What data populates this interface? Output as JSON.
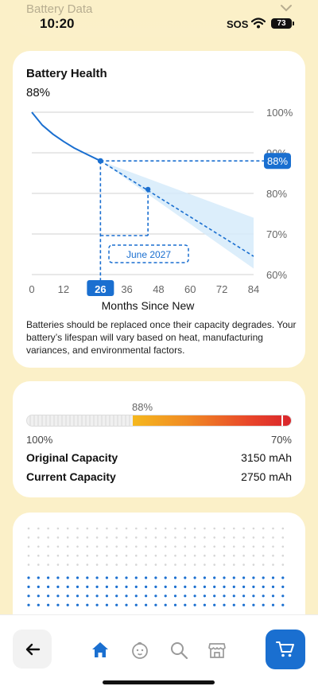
{
  "status_bar": {
    "nav_title": "Battery Data",
    "time": "10:20",
    "sos": "SOS",
    "battery_level": "73"
  },
  "health_card": {
    "title": "Battery Health",
    "value": "88%",
    "description": "Batteries should be replaced once their capacity degrades. Your battery’s lifespan will vary based on heat, manufacturing variances, and environmental factors.",
    "chart_data": {
      "type": "line",
      "xlabel": "Months Since New",
      "ylabel": "",
      "x_ticks": [
        0,
        12,
        26,
        36,
        48,
        60,
        72,
        84
      ],
      "y_ticks": [
        "100%",
        "90%",
        "80%",
        "70%",
        "60%"
      ],
      "xlim": [
        0,
        84
      ],
      "ylim": [
        60,
        100
      ],
      "grid": true,
      "series": [
        {
          "name": "",
          "style": "solid",
          "x": [
            0,
            4,
            8,
            12,
            16,
            20,
            26
          ],
          "y": [
            100,
            96.8,
            94.6,
            92.8,
            91.2,
            89.9,
            88
          ]
        },
        {
          "name": "",
          "style": "dashed",
          "x": [
            26,
            84
          ],
          "y": [
            88,
            64.5
          ]
        }
      ],
      "projection_band": {
        "x": [
          26,
          84
        ],
        "upper": [
          88,
          74
        ],
        "lower": [
          88,
          61.5
        ]
      },
      "highlight": {
        "x": 26,
        "y": 88,
        "x_label": "26",
        "y_label": "88%"
      },
      "projected_point": {
        "x": 44,
        "y": 81,
        "label": "June 2027"
      },
      "colors": {
        "line": "#1a6fd0",
        "band": "#d6ebfa",
        "grid": "#d0d0d0",
        "tag": "#1a6fd0"
      }
    }
  },
  "capacity_card": {
    "current_percent": "88%",
    "bar_fill_fraction": 0.6,
    "max_label": "100%",
    "min_label": "70%",
    "rows": [
      {
        "label": "Original Capacity",
        "value": "3150 mAh"
      },
      {
        "label": "Current Capacity",
        "value": "2750 mAh"
      }
    ]
  },
  "tab_bar": {
    "items": [
      {
        "name": "home",
        "icon": "house-icon",
        "active": true
      },
      {
        "name": "baby",
        "icon": "baby-face-icon",
        "active": false
      },
      {
        "name": "search",
        "icon": "magnifier-icon",
        "active": false
      },
      {
        "name": "store",
        "icon": "storefront-icon",
        "active": false
      }
    ],
    "accent": "#1a6fd0"
  }
}
